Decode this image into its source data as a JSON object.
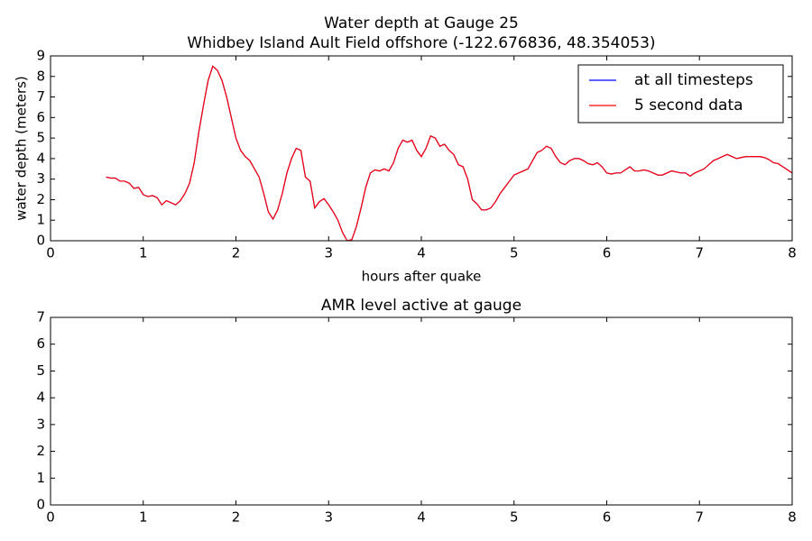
{
  "chart_data": [
    {
      "type": "line",
      "title": "Water depth at Gauge 25",
      "subtitle": "Whidbey Island Ault Field offshore  (-122.676836, 48.354053)",
      "xlabel": "hours after quake",
      "ylabel": "water depth (meters)",
      "xlim": [
        0,
        8
      ],
      "xticks": [
        0,
        1,
        2,
        3,
        4,
        5,
        6,
        7,
        8
      ],
      "ylim": [
        0,
        9
      ],
      "yticks": [
        0,
        1,
        2,
        3,
        4,
        5,
        6,
        7,
        8,
        9
      ],
      "legend": "upper right",
      "x": [
        0.6,
        0.65,
        0.7,
        0.75,
        0.8,
        0.85,
        0.9,
        0.95,
        1.0,
        1.05,
        1.1,
        1.15,
        1.2,
        1.25,
        1.3,
        1.35,
        1.4,
        1.45,
        1.5,
        1.55,
        1.6,
        1.65,
        1.7,
        1.75,
        1.8,
        1.85,
        1.9,
        1.95,
        2.0,
        2.05,
        2.1,
        2.15,
        2.2,
        2.25,
        2.3,
        2.35,
        2.4,
        2.45,
        2.5,
        2.55,
        2.6,
        2.65,
        2.7,
        2.75,
        2.8,
        2.85,
        2.9,
        2.95,
        3.0,
        3.05,
        3.1,
        3.15,
        3.2,
        3.25,
        3.3,
        3.35,
        3.4,
        3.45,
        3.5,
        3.55,
        3.6,
        3.65,
        3.7,
        3.75,
        3.8,
        3.85,
        3.9,
        3.95,
        4.0,
        4.05,
        4.1,
        4.15,
        4.2,
        4.25,
        4.3,
        4.35,
        4.4,
        4.45,
        4.5,
        4.55,
        4.6,
        4.65,
        4.7,
        4.75,
        4.8,
        4.85,
        4.9,
        4.95,
        5.0,
        5.05,
        5.1,
        5.15,
        5.2,
        5.25,
        5.3,
        5.35,
        5.4,
        5.45,
        5.5,
        5.55,
        5.6,
        5.65,
        5.7,
        5.75,
        5.8,
        5.85,
        5.9,
        5.95,
        6.0,
        6.05,
        6.1,
        6.15,
        6.2,
        6.25,
        6.3,
        6.35,
        6.4,
        6.45,
        6.5,
        6.55,
        6.6,
        6.65,
        6.7,
        6.75,
        6.8,
        6.85,
        6.9,
        6.95,
        7.0,
        7.05,
        7.1,
        7.15,
        7.2,
        7.25,
        7.3,
        7.35,
        7.4,
        7.45,
        7.5,
        7.55,
        7.6,
        7.65,
        7.7,
        7.75,
        7.8,
        7.85,
        7.9,
        7.95,
        8.0
      ],
      "series": [
        {
          "name": "at all timesteps",
          "color": "#0000ff",
          "values": [
            3.1,
            3.05,
            3.05,
            2.9,
            2.9,
            2.8,
            2.55,
            2.6,
            2.25,
            2.15,
            2.2,
            2.1,
            1.75,
            1.95,
            1.85,
            1.75,
            1.95,
            2.3,
            2.8,
            3.8,
            5.3,
            6.6,
            7.8,
            8.5,
            8.3,
            7.8,
            7.0,
            6.0,
            5.0,
            4.4,
            4.1,
            3.9,
            3.5,
            3.1,
            2.3,
            1.4,
            1.05,
            1.5,
            2.3,
            3.3,
            4.0,
            4.5,
            4.4,
            3.1,
            2.9,
            1.6,
            1.9,
            2.05,
            1.75,
            1.4,
            1.0,
            0.4,
            0.0,
            0.05,
            0.7,
            1.6,
            2.6,
            3.3,
            3.45,
            3.4,
            3.5,
            3.4,
            3.8,
            4.5,
            4.9,
            4.8,
            4.9,
            4.4,
            4.1,
            4.5,
            5.1,
            5.0,
            4.6,
            4.7,
            4.4,
            4.2,
            3.7,
            3.6,
            3.0,
            2.0,
            1.8,
            1.5,
            1.5,
            1.6,
            1.9,
            2.3,
            2.6,
            2.9,
            3.2,
            3.3,
            3.4,
            3.5,
            3.9,
            4.3,
            4.4,
            4.6,
            4.5,
            4.1,
            3.8,
            3.7,
            3.9,
            4.0,
            4.0,
            3.9,
            3.75,
            3.7,
            3.8,
            3.6,
            3.3,
            3.25,
            3.3,
            3.3,
            3.45,
            3.6,
            3.4,
            3.4,
            3.45,
            3.4,
            3.3,
            3.2,
            3.2,
            3.3,
            3.4,
            3.35,
            3.3,
            3.3,
            3.15,
            3.3,
            3.4,
            3.5,
            3.7,
            3.9,
            4.0,
            4.1,
            4.2,
            4.1,
            4.0,
            4.05,
            4.1,
            4.1,
            4.1,
            4.1,
            4.05,
            3.95,
            3.8,
            3.75,
            3.6,
            3.45,
            3.3
          ]
        },
        {
          "name": "5 second data",
          "color": "#ff0000",
          "values": [
            3.1,
            3.05,
            3.05,
            2.9,
            2.9,
            2.8,
            2.55,
            2.6,
            2.25,
            2.15,
            2.2,
            2.1,
            1.75,
            1.95,
            1.85,
            1.75,
            1.95,
            2.3,
            2.8,
            3.8,
            5.3,
            6.6,
            7.8,
            8.5,
            8.3,
            7.8,
            7.0,
            6.0,
            5.0,
            4.4,
            4.1,
            3.9,
            3.5,
            3.1,
            2.3,
            1.4,
            1.05,
            1.5,
            2.3,
            3.3,
            4.0,
            4.5,
            4.4,
            3.1,
            2.9,
            1.6,
            1.9,
            2.05,
            1.75,
            1.4,
            1.0,
            0.4,
            0.0,
            0.05,
            0.7,
            1.6,
            2.6,
            3.3,
            3.45,
            3.4,
            3.5,
            3.4,
            3.8,
            4.5,
            4.9,
            4.8,
            4.9,
            4.4,
            4.1,
            4.5,
            5.1,
            5.0,
            4.6,
            4.7,
            4.4,
            4.2,
            3.7,
            3.6,
            3.0,
            2.0,
            1.8,
            1.5,
            1.5,
            1.6,
            1.9,
            2.3,
            2.6,
            2.9,
            3.2,
            3.3,
            3.4,
            3.5,
            3.9,
            4.3,
            4.4,
            4.6,
            4.5,
            4.1,
            3.8,
            3.7,
            3.9,
            4.0,
            4.0,
            3.9,
            3.75,
            3.7,
            3.8,
            3.6,
            3.3,
            3.25,
            3.3,
            3.3,
            3.45,
            3.6,
            3.4,
            3.4,
            3.45,
            3.4,
            3.3,
            3.2,
            3.2,
            3.3,
            3.4,
            3.35,
            3.3,
            3.3,
            3.15,
            3.3,
            3.4,
            3.5,
            3.7,
            3.9,
            4.0,
            4.1,
            4.2,
            4.1,
            4.0,
            4.05,
            4.1,
            4.1,
            4.1,
            4.1,
            4.05,
            3.95,
            3.8,
            3.75,
            3.6,
            3.45,
            3.3
          ]
        }
      ]
    },
    {
      "type": "line",
      "title": "AMR level active at gauge",
      "xlim": [
        0,
        8
      ],
      "xticks": [
        0,
        1,
        2,
        3,
        4,
        5,
        6,
        7,
        8
      ],
      "ylim": [
        0,
        7
      ],
      "yticks": [
        0,
        1,
        2,
        3,
        4,
        5,
        6,
        7
      ],
      "series": []
    }
  ]
}
